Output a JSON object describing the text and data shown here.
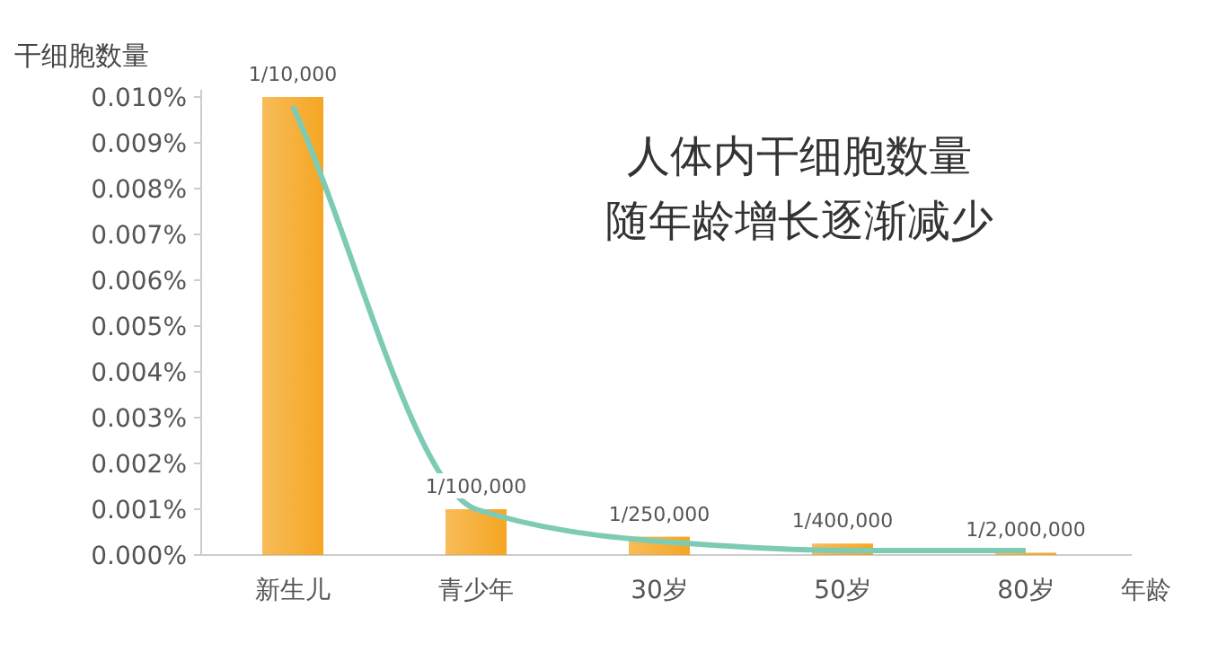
{
  "chart_data": {
    "type": "bar",
    "title": "人体内干细胞数量随年龄增长逐渐减少",
    "ylabel": "干细胞数量",
    "xlabel": "年龄",
    "categories": [
      "新生儿",
      "青少年",
      "30岁",
      "50岁",
      "80岁"
    ],
    "series": [
      {
        "color": "#f5a623",
        "values": [
          0.01,
          0.001,
          0.0004,
          0.00025,
          5e-05
        ],
        "value_labels": [
          "1/10,000",
          "1/100,000",
          "1/250,000",
          "1/400,000",
          "1/2,000,000"
        ]
      },
      {
        "type": "line",
        "color": "#7ecbb5",
        "values": [
          0.0098,
          0.001,
          0.0003,
          0.0001,
          0.0001
        ]
      }
    ],
    "ylim": [
      0,
      0.01
    ],
    "yticks": [
      {
        "value": 0,
        "label": "0.000%"
      },
      {
        "value": 0.001,
        "label": "0.001%"
      },
      {
        "value": 0.002,
        "label": "0.002%"
      },
      {
        "value": 0.003,
        "label": "0.003%"
      },
      {
        "value": 0.004,
        "label": "0.004%"
      },
      {
        "value": 0.005,
        "label": "0.005%"
      },
      {
        "value": 0.006,
        "label": "0.006%"
      },
      {
        "value": 0.007,
        "label": "0.007%"
      },
      {
        "value": 0.008,
        "label": "0.008%"
      },
      {
        "value": 0.009,
        "label": "0.009%"
      },
      {
        "value": 0.01,
        "label": "0.010%"
      }
    ],
    "grid": false
  }
}
